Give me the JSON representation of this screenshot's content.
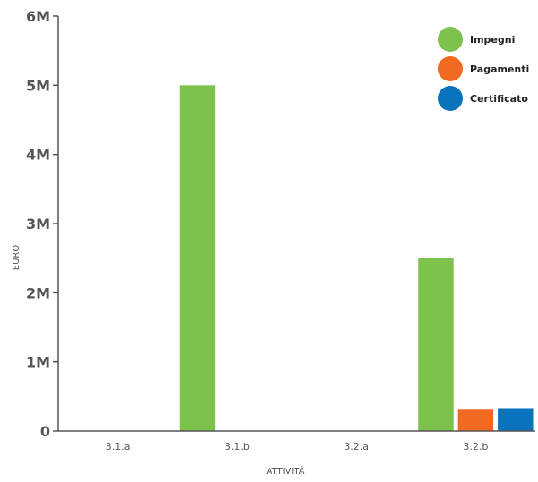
{
  "chart_data": {
    "type": "bar",
    "categories": [
      "3.1.a",
      "3.1.b",
      "3.2.a",
      "3.2.b"
    ],
    "series": [
      {
        "name": "Impegni",
        "values": [
          0,
          5000000,
          0,
          2500000
        ],
        "color": "#7cc24d"
      },
      {
        "name": "Pagamenti",
        "values": [
          0,
          0,
          0,
          320000
        ],
        "color": "#f26a21"
      },
      {
        "name": "Certificato",
        "values": [
          0,
          0,
          0,
          330000
        ],
        "color": "#0a73bd"
      }
    ],
    "xlabel": "ATTIVITÀ",
    "ylabel": "EURO",
    "ylim": [
      0,
      6000000
    ],
    "yticks": [
      {
        "value": 0,
        "label": "0"
      },
      {
        "value": 1000000,
        "label": "1M"
      },
      {
        "value": 2000000,
        "label": "2M"
      },
      {
        "value": 3000000,
        "label": "3M"
      },
      {
        "value": 4000000,
        "label": "4M"
      },
      {
        "value": 5000000,
        "label": "5M"
      },
      {
        "value": 6000000,
        "label": "6M"
      }
    ],
    "grid": false,
    "legend_position": "top-right",
    "axis_color": "#555555"
  }
}
